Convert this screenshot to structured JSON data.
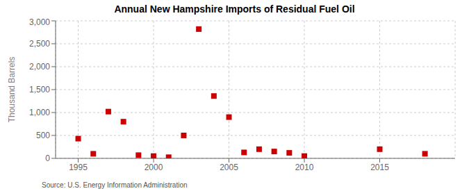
{
  "chart_data": {
    "type": "scatter",
    "title": "Annual New Hampshire Imports of Residual Fuel Oil",
    "y_label": "Thousand Barrels",
    "annotation": "Source: U.S. Energy Information Administration",
    "x": [
      1995,
      1996,
      1997,
      1998,
      1999,
      2000,
      2001,
      2002,
      2003,
      2004,
      2005,
      2006,
      2007,
      2008,
      2009,
      2010,
      2015,
      2018
    ],
    "values": [
      430,
      100,
      1020,
      800,
      70,
      50,
      25,
      500,
      2820,
      1360,
      900,
      130,
      200,
      150,
      120,
      50,
      200,
      100
    ],
    "color": "#cc0000",
    "marker": "square",
    "xlim": [
      1993.5,
      2020
    ],
    "xticks": [
      1995,
      2000,
      2005,
      2010,
      2015
    ],
    "ylim": [
      0,
      3000
    ],
    "yticks": [
      0,
      500,
      {
        "value": 1000,
        "label": "1,000"
      },
      {
        "value": 1500,
        "label": "1,500"
      },
      {
        "value": 2000,
        "label": "2,000"
      },
      {
        "value": 2500,
        "label": "2,500"
      },
      {
        "value": 3000,
        "label": "3,000"
      }
    ],
    "grid": true
  }
}
